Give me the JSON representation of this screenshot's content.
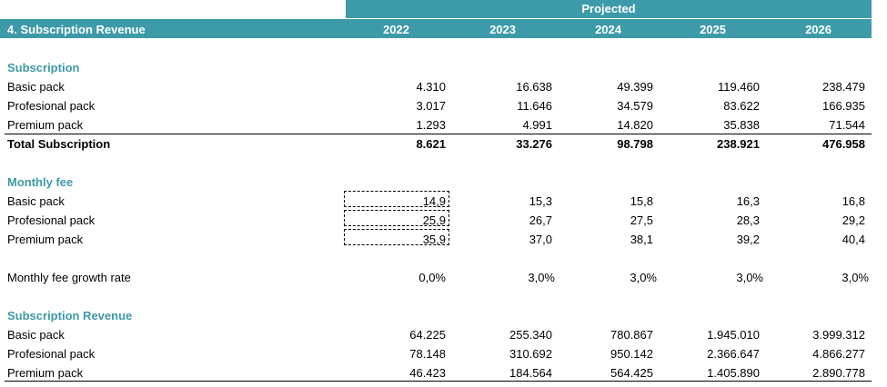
{
  "header": {
    "projected_label": "Projected",
    "title": "4. Subscription Revenue",
    "years": [
      "2022",
      "2023",
      "2024",
      "2025",
      "2026"
    ]
  },
  "subscription": {
    "title": "Subscription",
    "rows": [
      {
        "label": "Basic pack",
        "values": [
          "4.310",
          "16.638",
          "49.399",
          "119.460",
          "238.479"
        ]
      },
      {
        "label": "Profesional pack",
        "values": [
          "3.017",
          "11.646",
          "34.579",
          "83.622",
          "166.935"
        ]
      },
      {
        "label": "Premium pack",
        "values": [
          "1.293",
          "4.991",
          "14.820",
          "35.838",
          "71.544"
        ]
      }
    ],
    "total": {
      "label": "Total Subscription",
      "values": [
        "8.621",
        "33.276",
        "98.798",
        "238.921",
        "476.958"
      ]
    }
  },
  "monthly_fee": {
    "title": "Monthly fee",
    "rows": [
      {
        "label": "Basic pack",
        "values": [
          "14,9",
          "15,3",
          "15,8",
          "16,3",
          "16,8"
        ]
      },
      {
        "label": "Profesional pack",
        "values": [
          "25,9",
          "26,7",
          "27,5",
          "28,3",
          "29,2"
        ]
      },
      {
        "label": "Premium pack",
        "values": [
          "35,9",
          "37,0",
          "38,1",
          "39,2",
          "40,4"
        ]
      }
    ]
  },
  "growth": {
    "label": "Monthly fee growth rate",
    "values": [
      "0,0%",
      "3,0%",
      "3,0%",
      "3,0%",
      "3,0%"
    ]
  },
  "revenue": {
    "title": "Subscription Revenue",
    "rows": [
      {
        "label": "Basic pack",
        "values": [
          "64.225",
          "255.340",
          "780.867",
          "1.945.010",
          "3.999.312"
        ]
      },
      {
        "label": "Profesional pack",
        "values": [
          "78.148",
          "310.692",
          "950.142",
          "2.366.647",
          "4.866.277"
        ]
      },
      {
        "label": "Premium pack",
        "values": [
          "46.423",
          "184.564",
          "564.425",
          "1.405.890",
          "2.890.778"
        ]
      }
    ]
  }
}
